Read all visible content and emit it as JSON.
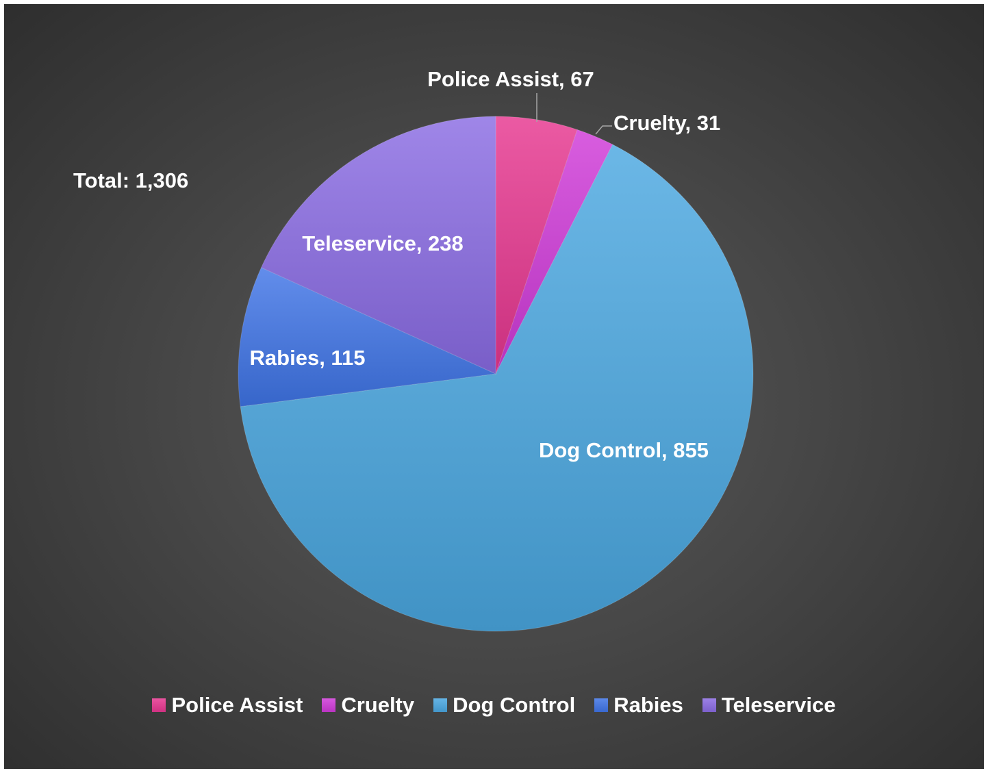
{
  "chart_data": {
    "type": "pie",
    "total_label": "Total: 1,306",
    "categories": [
      "Police Assist",
      "Cruelty",
      "Dog Control",
      "Rabies",
      "Teleservice"
    ],
    "values": [
      67,
      31,
      855,
      115,
      238
    ],
    "data_labels": [
      "Police Assist, 67",
      "Cruelty, 31",
      "Dog Control, 855",
      "Rabies, 115",
      "Teleservice, 238"
    ],
    "colors": [
      "#e6368f",
      "#cf3ad8",
      "#4aa7e0",
      "#3f74e6",
      "#8a6be3"
    ],
    "start_angle_deg": 0,
    "direction": "clockwise",
    "legend_position": "bottom"
  }
}
